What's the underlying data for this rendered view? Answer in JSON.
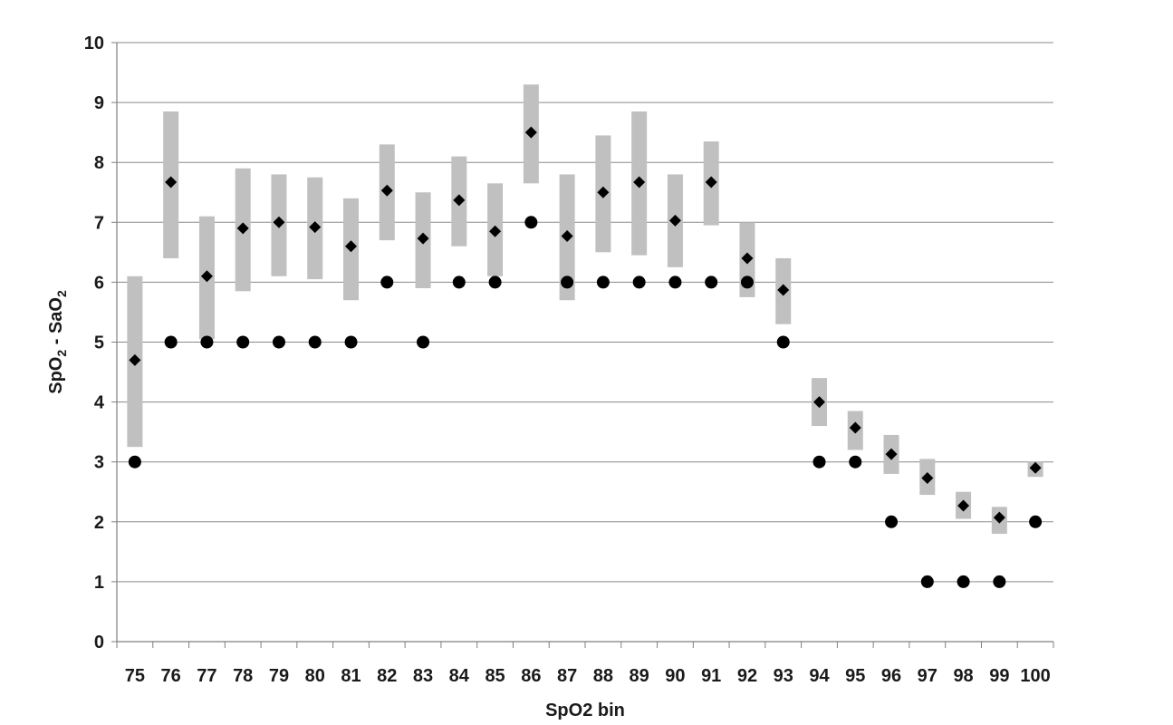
{
  "chart_data": {
    "type": "scatter",
    "xlabel": "SpO2 bin",
    "ylabel_parts": [
      "SpO",
      "2",
      " - SaO",
      "2"
    ],
    "ylim": [
      0,
      10
    ],
    "yticks": [
      0,
      1,
      2,
      3,
      4,
      5,
      6,
      7,
      8,
      9,
      10
    ],
    "grid": true,
    "legend": "none",
    "categories": [
      "75",
      "76",
      "77",
      "78",
      "79",
      "80",
      "81",
      "82",
      "83",
      "84",
      "85",
      "86",
      "87",
      "88",
      "89",
      "90",
      "91",
      "92",
      "93",
      "94",
      "95",
      "96",
      "97",
      "98",
      "99",
      "100"
    ],
    "series": [
      {
        "marker": "range-bar",
        "color": "#c0c0c0",
        "low": [
          3.25,
          6.4,
          5.05,
          5.85,
          6.1,
          6.05,
          5.7,
          6.7,
          5.9,
          6.6,
          6.1,
          7.65,
          5.7,
          6.5,
          6.45,
          6.25,
          6.95,
          5.75,
          5.3,
          3.6,
          3.2,
          2.8,
          2.45,
          2.05,
          1.8,
          2.75
        ],
        "high": [
          6.1,
          8.85,
          7.1,
          7.9,
          7.8,
          7.75,
          7.4,
          8.3,
          7.5,
          8.1,
          7.65,
          9.3,
          7.8,
          8.45,
          8.85,
          7.8,
          8.35,
          7.0,
          6.4,
          4.4,
          3.85,
          3.45,
          3.05,
          2.5,
          2.25,
          3.0
        ]
      },
      {
        "marker": "diamond",
        "color": "#000000",
        "values": [
          4.7,
          7.67,
          6.1,
          6.9,
          7.0,
          6.92,
          6.6,
          7.53,
          6.73,
          7.37,
          6.85,
          8.5,
          6.77,
          7.5,
          7.67,
          7.03,
          7.67,
          6.4,
          5.87,
          4.0,
          3.57,
          3.13,
          2.73,
          2.27,
          2.07,
          2.9
        ]
      },
      {
        "marker": "circle",
        "color": "#000000",
        "values": [
          3,
          5,
          5,
          5,
          5,
          5,
          5,
          6,
          5,
          6,
          6,
          7,
          6,
          6,
          6,
          6,
          6,
          6,
          5,
          3,
          3,
          2,
          1,
          1,
          1,
          2
        ]
      }
    ]
  }
}
